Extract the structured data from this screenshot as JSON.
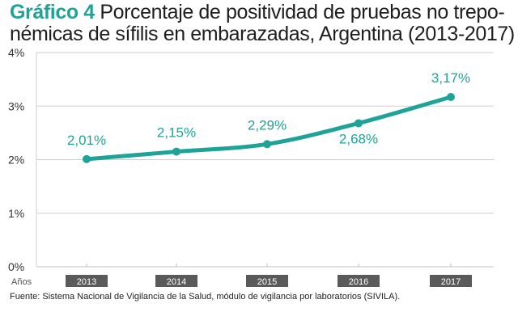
{
  "title": {
    "prefix": "Gráfico 4",
    "line1": " Porcentaje de positividad de pruebas no trepo-",
    "line2": "némicas de sífilis en embarazadas, Argentina (2013-2017)"
  },
  "source": "Fuente: Sistema Nacional de Vigilancia de la Salud, módulo de vigilancia por laboratorios (SIVILA).",
  "colors": {
    "accent": "#1fa398",
    "grid": "#cfcfcf",
    "year_box": "#5a5a5a"
  },
  "chart_data": {
    "type": "line",
    "title": "Gráfico 4 Porcentaje de positividad de pruebas no trepo-némicas de sífilis en embarazadas, Argentina (2013-2017)",
    "xlabel": "Años",
    "ylabel": "",
    "categories": [
      "2013",
      "2014",
      "2015",
      "2016",
      "2017"
    ],
    "series": [
      {
        "values": [
          2.01,
          2.15,
          2.29,
          2.68,
          3.17
        ],
        "labels": [
          "2,01%",
          "2,15%",
          "2,29%",
          "2,68%",
          "3,17%"
        ]
      }
    ],
    "ylim": [
      0,
      4
    ],
    "yticks": [
      0,
      1,
      2,
      3,
      4
    ],
    "ytick_labels": [
      "0%",
      "1%",
      "2%",
      "3%",
      "4%"
    ],
    "grid": true,
    "legend": "none"
  }
}
